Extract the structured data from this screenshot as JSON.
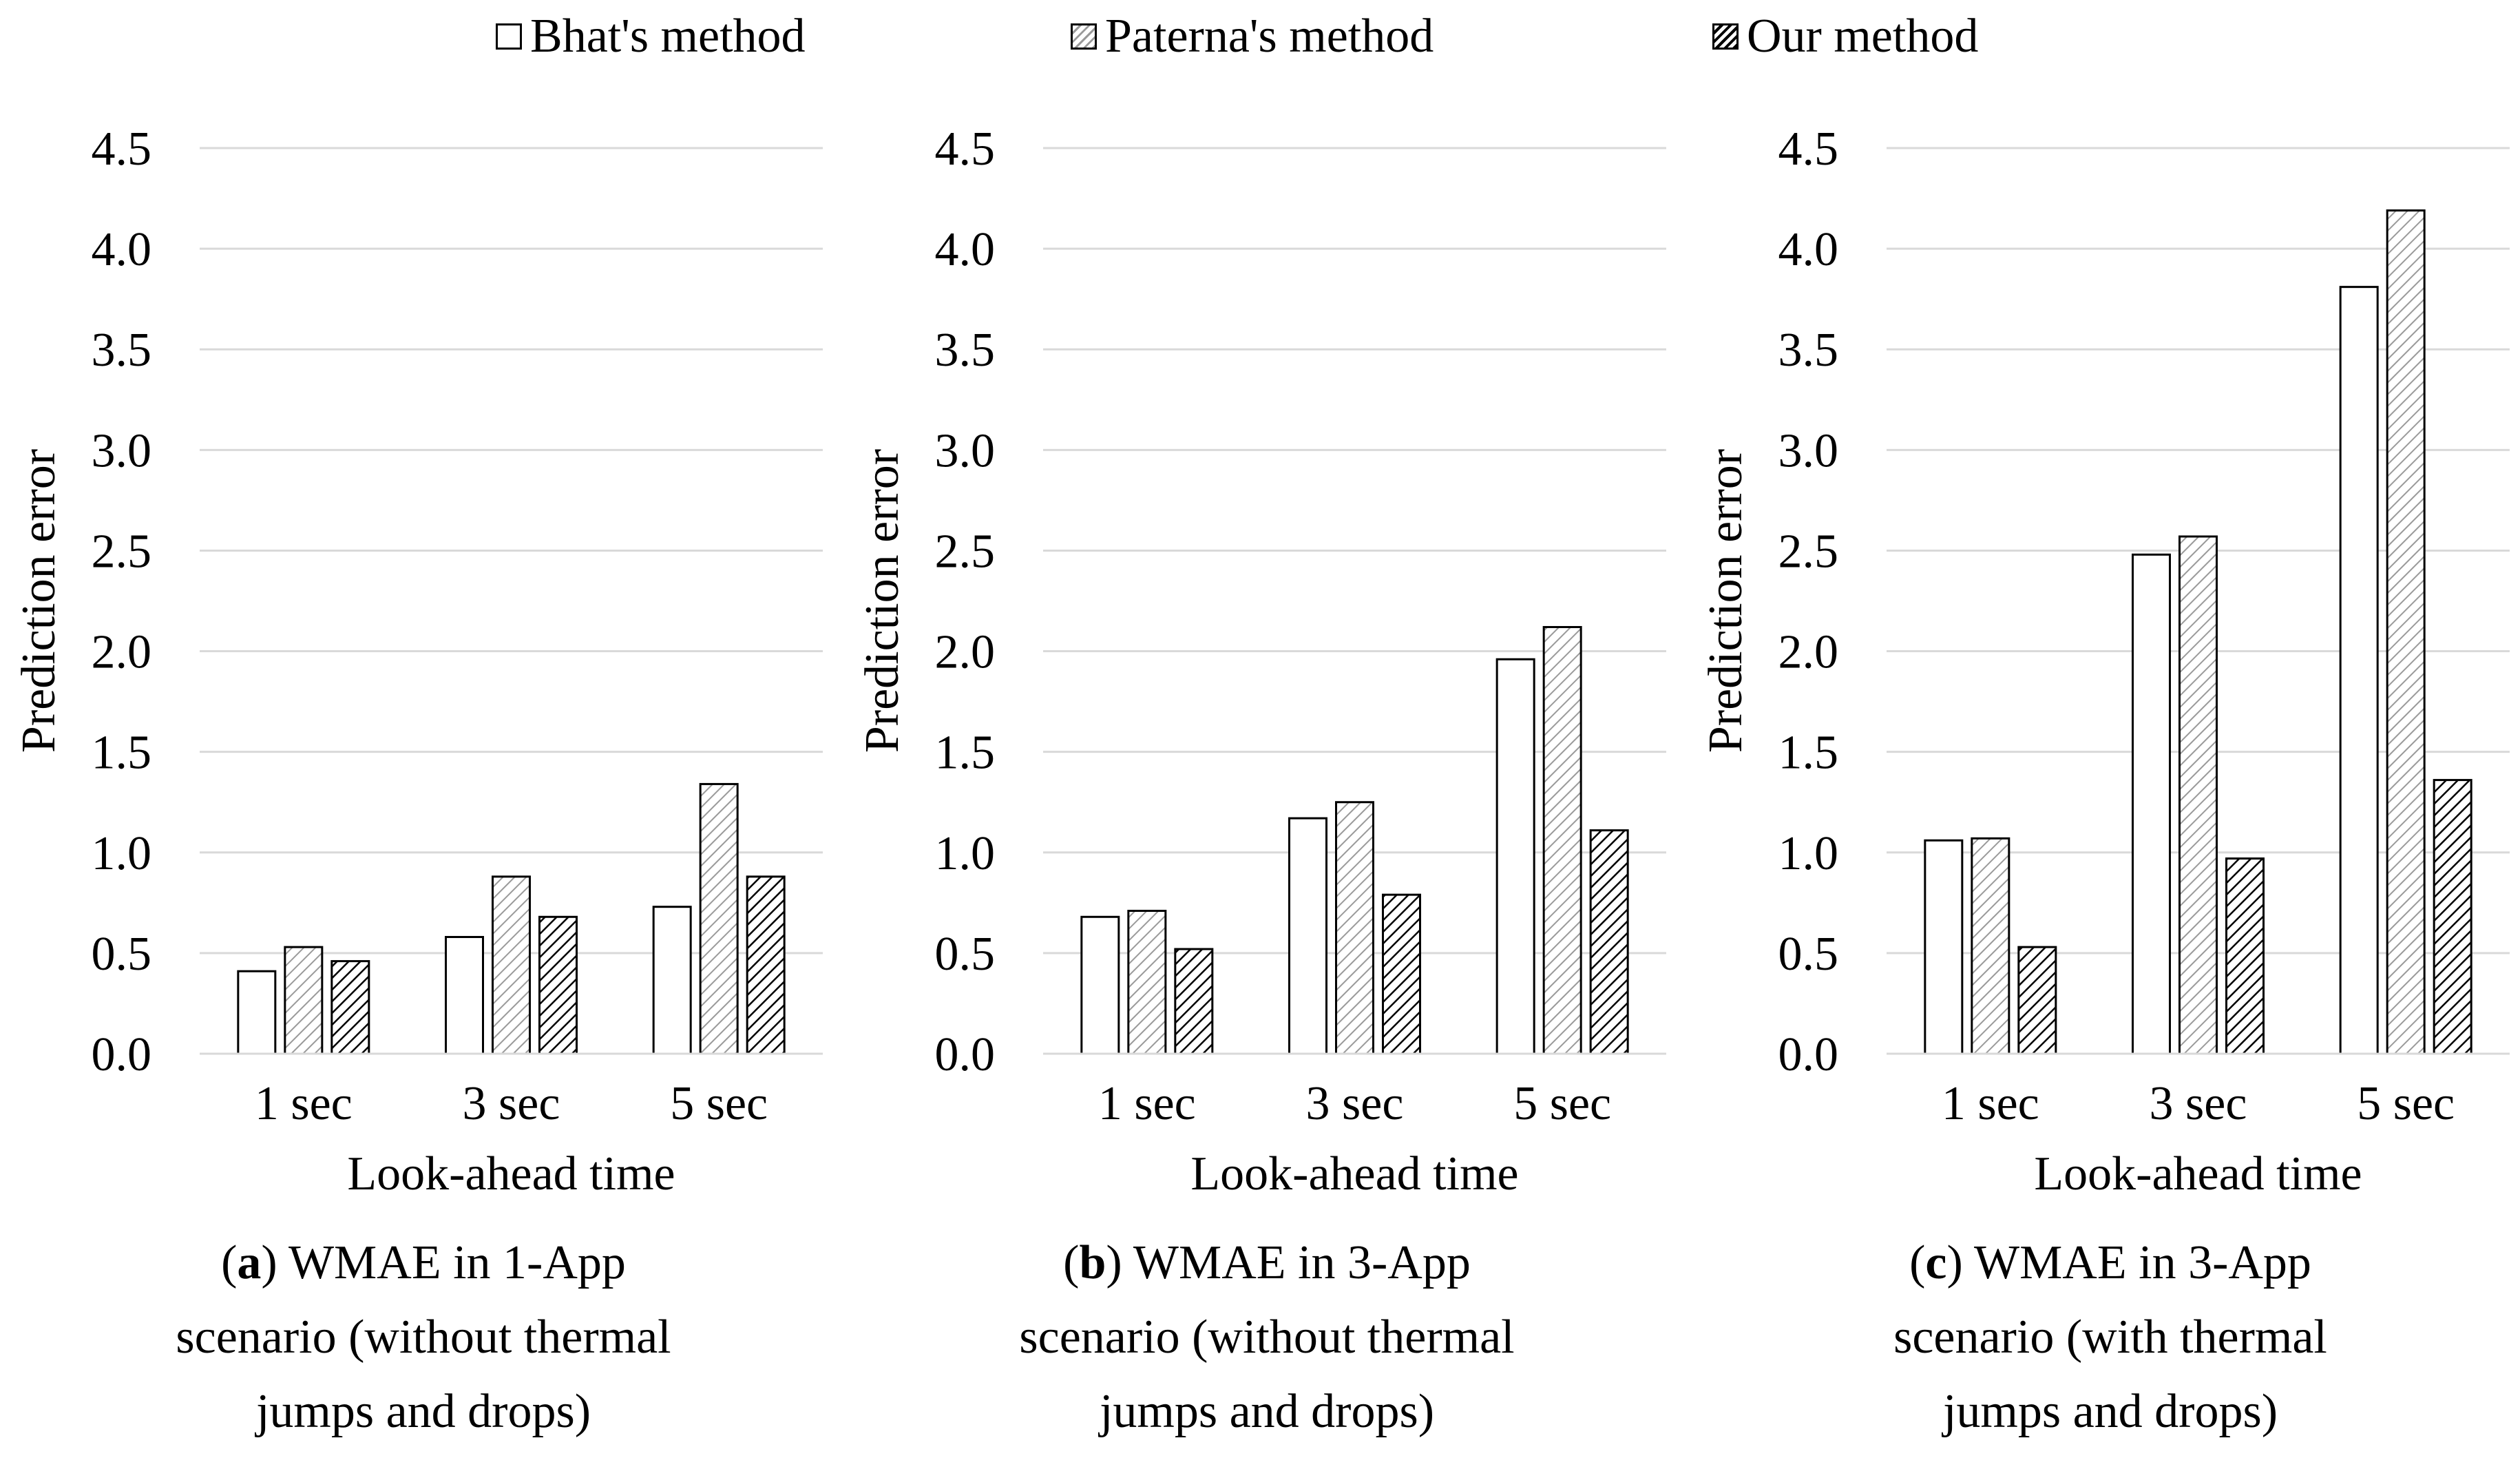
{
  "legend": {
    "items": [
      {
        "label": "Bhat's method",
        "pattern": "white"
      },
      {
        "label": "Paterna's method",
        "pattern": "light-hatch"
      },
      {
        "label": "Our method",
        "pattern": "dark-hatch"
      }
    ]
  },
  "colors": {
    "axis": "#000000",
    "grid": "#d9d9d9",
    "bar_stroke": "#000000",
    "light_hatch": "#9a9a9a",
    "dark_hatch": "#000000"
  },
  "captions": [
    {
      "letter": "a",
      "line1": ") WMAE in 1-App",
      "line2": "scenario (without thermal",
      "line3": "jumps and drops)"
    },
    {
      "letter": "b",
      "line1": ") WMAE in 3-App",
      "line2": "scenario (without thermal",
      "line3": "jumps and drops)"
    },
    {
      "letter": "c",
      "line1": ") WMAE in 3-App",
      "line2": "scenario (with thermal",
      "line3": "jumps and drops)"
    }
  ],
  "chart_data": [
    {
      "type": "bar",
      "xlabel": "Look-ahead time",
      "ylabel": "Prediction error",
      "ylim": [
        0,
        4.5
      ],
      "yticks": [
        "0.0",
        "0.5",
        "1.0",
        "1.5",
        "2.0",
        "2.5",
        "3.0",
        "3.5",
        "4.0",
        "4.5"
      ],
      "grid": true,
      "legend_position": "top",
      "categories": [
        "1 sec",
        "3 sec",
        "5 sec"
      ],
      "series": [
        {
          "name": "Bhat's method",
          "values": [
            0.41,
            0.58,
            0.73
          ]
        },
        {
          "name": "Paterna's method",
          "values": [
            0.53,
            0.88,
            1.34
          ]
        },
        {
          "name": "Our method",
          "values": [
            0.46,
            0.68,
            0.88
          ]
        }
      ]
    },
    {
      "type": "bar",
      "xlabel": "Look-ahead time",
      "ylabel": "Prediction error",
      "ylim": [
        0,
        4.5
      ],
      "yticks": [
        "0.0",
        "0.5",
        "1.0",
        "1.5",
        "2.0",
        "2.5",
        "3.0",
        "3.5",
        "4.0",
        "4.5"
      ],
      "grid": true,
      "legend_position": "top",
      "categories": [
        "1 sec",
        "3 sec",
        "5 sec"
      ],
      "series": [
        {
          "name": "Bhat's method",
          "values": [
            0.68,
            1.17,
            1.96
          ]
        },
        {
          "name": "Paterna's method",
          "values": [
            0.71,
            1.25,
            2.12
          ]
        },
        {
          "name": "Our method",
          "values": [
            0.52,
            0.79,
            1.11
          ]
        }
      ]
    },
    {
      "type": "bar",
      "xlabel": "Look-ahead time",
      "ylabel": "Prediction error",
      "ylim": [
        0,
        4.5
      ],
      "yticks": [
        "0.0",
        "0.5",
        "1.0",
        "1.5",
        "2.0",
        "2.5",
        "3.0",
        "3.5",
        "4.0",
        "4.5"
      ],
      "grid": true,
      "legend_position": "top",
      "categories": [
        "1 sec",
        "3 sec",
        "5 sec"
      ],
      "series": [
        {
          "name": "Bhat's method",
          "values": [
            1.06,
            2.48,
            3.81
          ]
        },
        {
          "name": "Paterna's method",
          "values": [
            1.07,
            2.57,
            4.19
          ]
        },
        {
          "name": "Our method",
          "values": [
            0.53,
            0.97,
            1.36
          ]
        }
      ]
    }
  ]
}
